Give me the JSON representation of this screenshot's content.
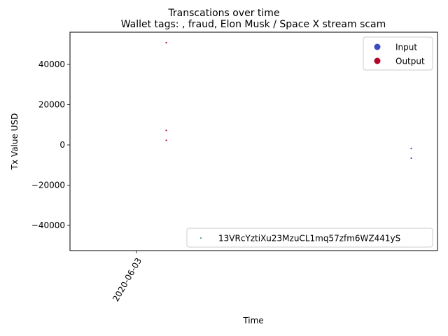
{
  "chart_data": {
    "type": "scatter",
    "suptitle": "Transcations over time",
    "title": "Wallet tags: , fraud, Elon Musk / Space X stream scam",
    "xlabel": "Time",
    "ylabel": "Tx Value USD",
    "x_tick_labels": [
      "2020-06-03"
    ],
    "y_ticks": [
      -40000,
      -20000,
      0,
      20000,
      40000
    ],
    "ylim": [
      -52500,
      56000
    ],
    "series": [
      {
        "name": "Output",
        "color": "#b40426",
        "points": [
          {
            "x": "2020-06-02",
            "y": 50800
          },
          {
            "x": "2020-06-02",
            "y": 7200
          },
          {
            "x": "2020-06-02",
            "y": 2300
          }
        ]
      },
      {
        "name": "Input",
        "color": "#3b4cc0",
        "points": [
          {
            "x": "2020-06-09",
            "y": -1800
          },
          {
            "x": "2020-06-09",
            "y": -6600
          }
        ]
      }
    ],
    "legend_top_right": [
      {
        "label": "Input",
        "color": "#3b4cc0"
      },
      {
        "label": "Output",
        "color": "#b40426"
      }
    ],
    "legend_bottom_right": [
      {
        "label": "13VRcYztiXu23MzuCL1mq57zfm6WZ441yS",
        "color": "#1a8a8a"
      }
    ],
    "grid": false
  }
}
